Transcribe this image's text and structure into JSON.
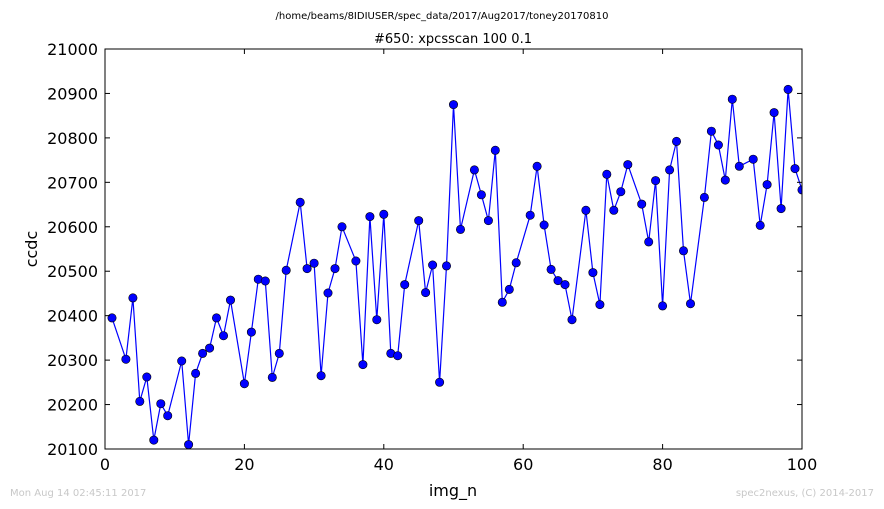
{
  "figure": {
    "path": "/home/beams/8IDIUSER/spec_data/2017/Aug2017/toney20170810",
    "timestamp": "Mon Aug 14 02:45:11 2017",
    "credit": "spec2nexus, (C) 2014-2017"
  },
  "chart_data": {
    "type": "line",
    "title": "#650: xpcsscan 100 0.1",
    "xlabel": "img_n",
    "ylabel": "ccdc",
    "xlim": [
      0,
      100
    ],
    "ylim": [
      20100,
      21000
    ],
    "xticks": [
      0,
      20,
      40,
      60,
      80,
      100
    ],
    "yticks": [
      20100,
      20200,
      20300,
      20400,
      20500,
      20600,
      20700,
      20800,
      20900,
      21000
    ],
    "grid": false,
    "line_color": "#0000ff",
    "marker": "circle",
    "x": [
      1,
      3,
      4,
      5,
      6,
      7,
      8,
      9,
      11,
      12,
      13,
      14,
      15,
      16,
      17,
      18,
      20,
      21,
      22,
      23,
      24,
      25,
      26,
      28,
      29,
      30,
      31,
      32,
      33,
      34,
      36,
      37,
      38,
      39,
      40,
      41,
      42,
      43,
      45,
      46,
      47,
      48,
      49,
      50,
      51,
      53,
      54,
      55,
      56,
      57,
      58,
      59,
      61,
      62,
      63,
      64,
      65,
      66,
      67,
      69,
      70,
      71,
      72,
      73,
      74,
      75,
      77,
      78,
      79,
      80,
      81,
      82,
      83,
      84,
      86,
      87,
      88,
      89,
      90,
      91,
      93,
      94,
      95,
      96,
      97,
      98,
      99,
      100
    ],
    "y": [
      20395,
      20302,
      20440,
      20207,
      20262,
      20120,
      20202,
      20175,
      20298,
      20110,
      20270,
      20315,
      20327,
      20395,
      20355,
      20435,
      20247,
      20363,
      20482,
      20478,
      20261,
      20315,
      20502,
      20655,
      20506,
      20518,
      20265,
      20451,
      20506,
      20600,
      20523,
      20290,
      20623,
      20391,
      20628,
      20315,
      20310,
      20470,
      20614,
      20452,
      20514,
      20250,
      20512,
      20875,
      20594,
      20728,
      20672,
      20614,
      20772,
      20430,
      20459,
      20519,
      20626,
      20736,
      20604,
      20504,
      20479,
      20470,
      20391,
      20637,
      20497,
      20425,
      20718,
      20637,
      20679,
      20740,
      20651,
      20566,
      20704,
      20422,
      20728,
      20792,
      20546,
      20427,
      20666,
      20815,
      20784,
      20705,
      20887,
      20736,
      20752,
      20603,
      20695,
      20857,
      20641,
      20909,
      20731,
      20683
    ]
  }
}
